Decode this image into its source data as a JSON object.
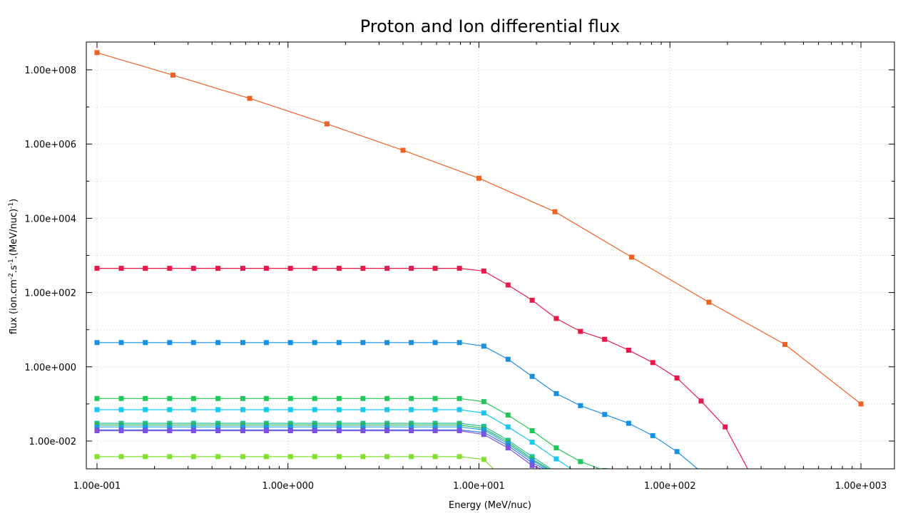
{
  "chart_data": {
    "type": "line",
    "title": "Proton and Ion differential flux",
    "xlabel": "Energy (MeV/nuc)",
    "ylabel_parts": [
      "flux (ion.cm",
      "-2",
      ".s",
      "-1",
      ".(MeV/nuc)",
      "-1",
      ")"
    ],
    "xscale": "log",
    "yscale": "log",
    "xlim": [
      0.1,
      1000
    ],
    "ylim": [
      0.0015,
      400000000.0
    ],
    "grid": true,
    "xticks": [
      0.1,
      1,
      10,
      100,
      1000
    ],
    "xtick_labels": [
      "1.00e-001",
      "1.00e+000",
      "1.00e+001",
      "1.00e+002",
      "1.00e+003"
    ],
    "yticks": [
      0.01,
      1,
      100,
      10000,
      1000000,
      100000000
    ],
    "ytick_labels": [
      "1.00e-002",
      "1.00e+000",
      "1.00e+002",
      "1.00e+004",
      "1.00e+006",
      "1.00e+008"
    ],
    "series": [
      {
        "color": "#f06020",
        "x": [
          0.1,
          0.25,
          0.63,
          1.6,
          4.0,
          10.0,
          25.0,
          63.0,
          160.0,
          400.0,
          1000.0
        ],
        "y": [
          290000000,
          72000000,
          17000000,
          3500000,
          680000,
          120000,
          15000,
          900,
          55,
          4,
          0.1
        ]
      },
      {
        "color": "#e8184a",
        "x": [
          0.1,
          0.134,
          0.179,
          0.24,
          0.32,
          0.43,
          0.58,
          0.77,
          1.03,
          1.38,
          1.85,
          2.47,
          3.3,
          4.42,
          5.9,
          7.9,
          10.6,
          14.2,
          19.0,
          25.4,
          34.0,
          45.5,
          60.8,
          81.3,
          108.8,
          145.5,
          194.6,
          260.0
        ],
        "y": [
          450,
          450,
          450,
          450,
          450,
          450,
          450,
          450,
          450,
          450,
          450,
          450,
          450,
          450,
          450,
          450,
          380,
          160,
          62,
          20,
          9,
          5.5,
          2.8,
          1.3,
          0.5,
          0.12,
          0.024,
          0.0015
        ]
      },
      {
        "color": "#1890e0",
        "x": [
          0.1,
          0.134,
          0.179,
          0.24,
          0.32,
          0.43,
          0.58,
          0.77,
          1.03,
          1.38,
          1.85,
          2.47,
          3.3,
          4.42,
          5.9,
          7.9,
          10.6,
          14.2,
          19.0,
          25.4,
          34.0,
          45.5,
          60.8,
          81.3,
          108.8,
          145.0
        ],
        "y": [
          4.5,
          4.5,
          4.5,
          4.5,
          4.5,
          4.5,
          4.5,
          4.5,
          4.5,
          4.5,
          4.5,
          4.5,
          4.5,
          4.5,
          4.5,
          4.5,
          3.6,
          1.6,
          0.55,
          0.19,
          0.09,
          0.052,
          0.03,
          0.014,
          0.0052,
          0.0015
        ]
      },
      {
        "color": "#20c858",
        "x": [
          0.1,
          0.134,
          0.179,
          0.24,
          0.32,
          0.43,
          0.58,
          0.77,
          1.03,
          1.38,
          1.85,
          2.47,
          3.3,
          4.42,
          5.9,
          7.9,
          10.6,
          14.2,
          19.0,
          25.4,
          34.0,
          45.5
        ],
        "y": [
          0.14,
          0.14,
          0.14,
          0.14,
          0.14,
          0.14,
          0.14,
          0.14,
          0.14,
          0.14,
          0.14,
          0.14,
          0.14,
          0.14,
          0.14,
          0.14,
          0.115,
          0.05,
          0.019,
          0.0065,
          0.0028,
          0.0016
        ]
      },
      {
        "color": "#18c8f0",
        "x": [
          0.1,
          0.134,
          0.179,
          0.24,
          0.32,
          0.43,
          0.58,
          0.77,
          1.03,
          1.38,
          1.85,
          2.47,
          3.3,
          4.42,
          5.9,
          7.9,
          10.6,
          14.2,
          19.0,
          25.4,
          32.0
        ],
        "y": [
          0.07,
          0.07,
          0.07,
          0.07,
          0.07,
          0.07,
          0.07,
          0.07,
          0.07,
          0.07,
          0.07,
          0.07,
          0.07,
          0.07,
          0.07,
          0.07,
          0.057,
          0.024,
          0.0093,
          0.0033,
          0.0015
        ]
      },
      {
        "color": "#20c0a0",
        "x": [
          0.1,
          0.134,
          0.179,
          0.24,
          0.32,
          0.43,
          0.58,
          0.77,
          1.03,
          1.38,
          1.85,
          2.47,
          3.3,
          4.42,
          5.9,
          7.9,
          10.6,
          14.2,
          19.0,
          25.0
        ],
        "y": [
          0.03,
          0.03,
          0.03,
          0.03,
          0.03,
          0.03,
          0.03,
          0.03,
          0.03,
          0.03,
          0.03,
          0.03,
          0.03,
          0.03,
          0.03,
          0.03,
          0.025,
          0.0105,
          0.0038,
          0.0015
        ]
      },
      {
        "color": "#30b850",
        "x": [
          0.1,
          0.134,
          0.179,
          0.24,
          0.32,
          0.43,
          0.58,
          0.77,
          1.03,
          1.38,
          1.85,
          2.47,
          3.3,
          4.42,
          5.9,
          7.9,
          10.6,
          14.2,
          19.0,
          24.5
        ],
        "y": [
          0.027,
          0.027,
          0.027,
          0.027,
          0.027,
          0.027,
          0.027,
          0.027,
          0.027,
          0.027,
          0.027,
          0.027,
          0.027,
          0.027,
          0.027,
          0.027,
          0.022,
          0.0095,
          0.0033,
          0.0015
        ]
      },
      {
        "color": "#1aa0d8",
        "x": [
          0.1,
          0.134,
          0.179,
          0.24,
          0.32,
          0.43,
          0.58,
          0.77,
          1.03,
          1.38,
          1.85,
          2.47,
          3.3,
          4.42,
          5.9,
          7.9,
          10.6,
          14.2,
          19.0,
          24.0
        ],
        "y": [
          0.024,
          0.024,
          0.024,
          0.024,
          0.024,
          0.024,
          0.024,
          0.024,
          0.024,
          0.024,
          0.024,
          0.024,
          0.024,
          0.024,
          0.024,
          0.024,
          0.02,
          0.0085,
          0.003,
          0.0015
        ]
      },
      {
        "color": "#3878e8",
        "x": [
          0.1,
          0.134,
          0.179,
          0.24,
          0.32,
          0.43,
          0.58,
          0.77,
          1.03,
          1.38,
          1.85,
          2.47,
          3.3,
          4.42,
          5.9,
          7.9,
          10.6,
          14.2,
          19.0,
          23.5
        ],
        "y": [
          0.02,
          0.02,
          0.02,
          0.02,
          0.02,
          0.02,
          0.02,
          0.02,
          0.02,
          0.02,
          0.02,
          0.02,
          0.02,
          0.02,
          0.02,
          0.02,
          0.017,
          0.0075,
          0.0026,
          0.0015
        ]
      },
      {
        "color": "#8050e0",
        "x": [
          0.1,
          0.134,
          0.179,
          0.24,
          0.32,
          0.43,
          0.58,
          0.77,
          1.03,
          1.38,
          1.85,
          2.47,
          3.3,
          4.42,
          5.9,
          7.9,
          10.6,
          14.2,
          19.0,
          23.0
        ],
        "y": [
          0.019,
          0.019,
          0.019,
          0.019,
          0.019,
          0.019,
          0.019,
          0.019,
          0.019,
          0.019,
          0.019,
          0.019,
          0.019,
          0.019,
          0.019,
          0.019,
          0.015,
          0.0065,
          0.0022,
          0.0015
        ]
      },
      {
        "color": "#80e030",
        "x": [
          0.1,
          0.134,
          0.179,
          0.24,
          0.32,
          0.43,
          0.58,
          0.77,
          1.03,
          1.38,
          1.85,
          2.47,
          3.3,
          4.42,
          5.9,
          7.9,
          10.6,
          12.3
        ],
        "y": [
          0.0038,
          0.0038,
          0.0038,
          0.0038,
          0.0038,
          0.0038,
          0.0038,
          0.0038,
          0.0038,
          0.0038,
          0.0038,
          0.0038,
          0.0038,
          0.0038,
          0.0038,
          0.0038,
          0.0032,
          0.0015
        ]
      }
    ]
  }
}
